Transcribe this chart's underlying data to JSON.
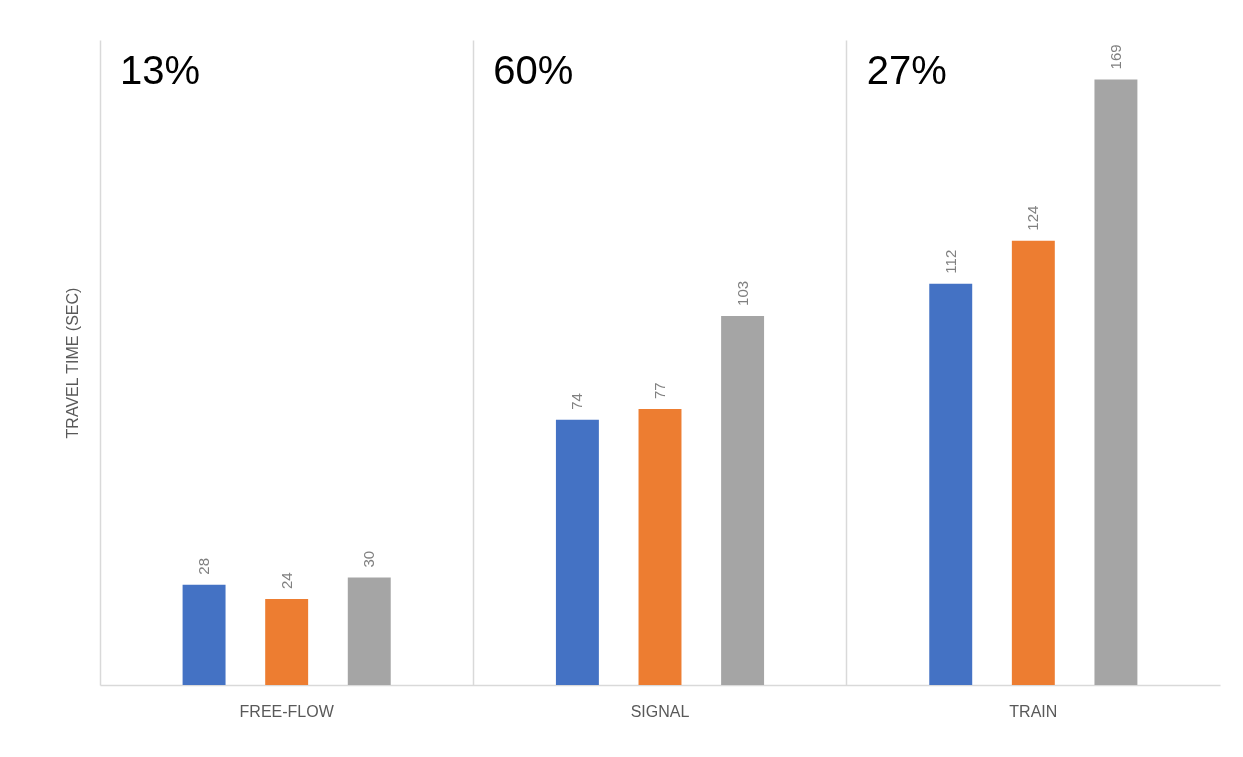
{
  "chart_data": {
    "type": "bar",
    "ylabel": "TRAVEL TIME (SEC)",
    "categories": [
      "FREE-FLOW",
      "SIGNAL",
      "TRAIN"
    ],
    "series": [
      {
        "color": "#4472c4",
        "values": [
          28,
          74,
          112
        ]
      },
      {
        "color": "#ed7d31",
        "values": [
          24,
          77,
          124
        ]
      },
      {
        "color": "#a5a5a5",
        "values": [
          30,
          103,
          169
        ]
      }
    ],
    "ylim": [
      0,
      180
    ],
    "data_labels": true,
    "grid": "x",
    "tick_labels": "x",
    "legend": false,
    "annotations": [
      "13%",
      "60%",
      "27%"
    ]
  }
}
